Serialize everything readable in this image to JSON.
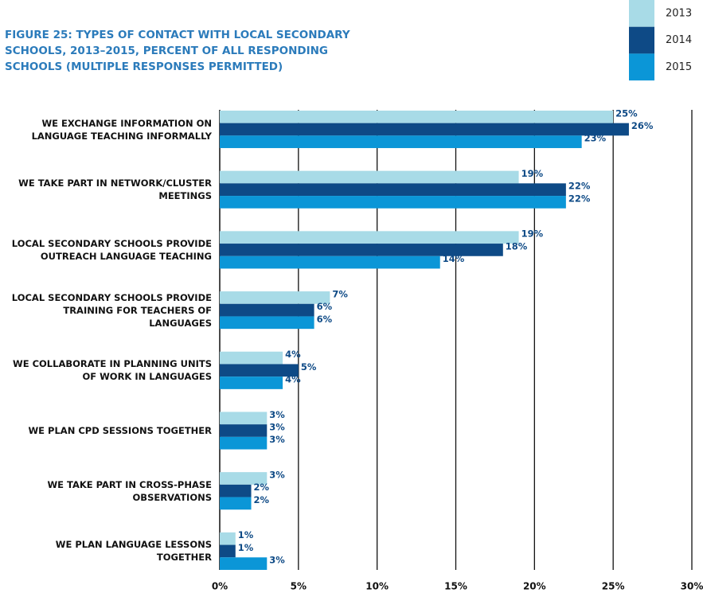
{
  "chart_data": {
    "type": "hbar",
    "title": "FIGURE 25: TYPES OF CONTACT WITH LOCAL SECONDARY SCHOOLS, 2013–2015, PERCENT OF ALL RESPONDING SCHOOLS (MULTIPLE RESPONSES PERMITTED)",
    "categories": [
      "WE EXCHANGE INFORMATION ON LANGUAGE TEACHING INFORMALLY",
      "WE TAKE PART IN NETWORK/CLUSTER MEETINGS",
      "LOCAL SECONDARY SCHOOLS PROVIDE OUTREACH LANGUAGE TEACHING",
      "LOCAL SECONDARY SCHOOLS PROVIDE TRAINING FOR TEACHERS OF LANGUAGES",
      "WE COLLABORATE IN PLANNING UNITS OF WORK IN LANGUAGES",
      "WE PLAN CPD SESSIONS TOGETHER",
      "WE TAKE PART IN CROSS-PHASE OBSERVATIONS",
      "WE PLAN LANGUAGE LESSONS TOGETHER"
    ],
    "series": [
      {
        "name": "2013",
        "color": "#a8dbe7",
        "values": [
          25,
          19,
          19,
          7,
          4,
          3,
          3,
          1
        ],
        "value_labels": [
          "25%",
          "19%",
          "19%",
          "7%",
          "4%",
          "3%",
          "3%",
          "1%"
        ]
      },
      {
        "name": "2014",
        "color": "#0e4a86",
        "values": [
          26,
          22,
          18,
          6,
          5,
          3,
          2,
          1
        ],
        "value_labels": [
          "26%",
          "22%",
          "18%",
          "6%",
          "5%",
          "3%",
          "2%",
          "1%"
        ]
      },
      {
        "name": "2015",
        "color": "#0b96d7",
        "values": [
          23,
          22,
          14,
          6,
          4,
          3,
          2,
          3
        ],
        "value_labels": [
          "23%",
          "22%",
          "14%",
          "6%",
          "4%",
          "3%",
          "2%",
          "3%"
        ]
      }
    ],
    "xlim": [
      0,
      30
    ],
    "xticks": [
      {
        "value": 0,
        "label": "0%"
      },
      {
        "value": 5,
        "label": "5%"
      },
      {
        "value": 10,
        "label": "10%"
      },
      {
        "value": 15,
        "label": "15%"
      },
      {
        "value": 20,
        "label": "20%"
      },
      {
        "value": 25,
        "label": "25%"
      },
      {
        "value": 30,
        "label": "30%"
      }
    ],
    "grid": true,
    "legend": "top-right"
  }
}
